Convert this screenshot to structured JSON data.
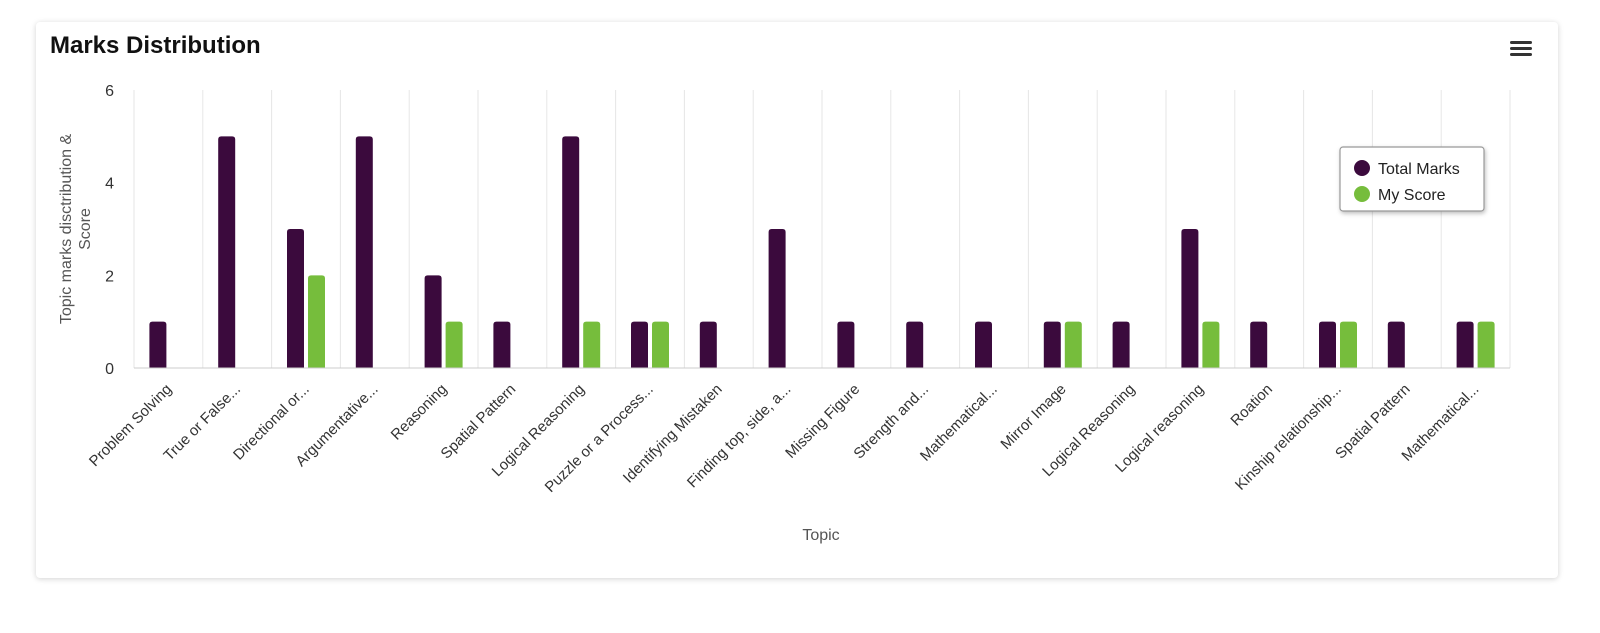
{
  "title": "Marks Distribution",
  "menu_icon": "hamburger-menu-icon",
  "chart_data": {
    "type": "bar",
    "title": "Marks Distribution",
    "xlabel": "Topic",
    "ylabel_lines": [
      "Topic marks disctribution &",
      "Score"
    ],
    "ylim": [
      0,
      6
    ],
    "yticks": [
      0,
      2,
      4,
      6
    ],
    "grid": "vertical",
    "legend_position": "right",
    "categories": [
      "Problem Solving",
      "True or False...",
      "Directional or...",
      "Argumentative...",
      "Reasoning",
      "Spatial Pattern",
      "Logical Reasoning",
      "Puzzle or a Process...",
      "Identifying Mistaken",
      "Finding top, side, a...",
      "Missing Figure",
      "Strength and...",
      "Mathematical...",
      "Mirror Image",
      "Logical Reasoning",
      "Logical reasoning",
      "Roation",
      "Kinship relationship...",
      "Spatial Pattern",
      "Mathematical..."
    ],
    "series": [
      {
        "name": "Total Marks",
        "color": "#3b0a3d",
        "values": [
          1,
          5,
          3,
          5,
          2,
          1,
          5,
          1,
          1,
          3,
          1,
          1,
          1,
          1,
          1,
          3,
          1,
          1,
          1,
          1
        ]
      },
      {
        "name": "My Score",
        "color": "#76bd3c",
        "values": [
          0,
          0,
          2,
          0,
          1,
          0,
          1,
          1,
          0,
          0,
          0,
          0,
          0,
          1,
          0,
          1,
          0,
          1,
          0,
          1
        ]
      }
    ]
  }
}
